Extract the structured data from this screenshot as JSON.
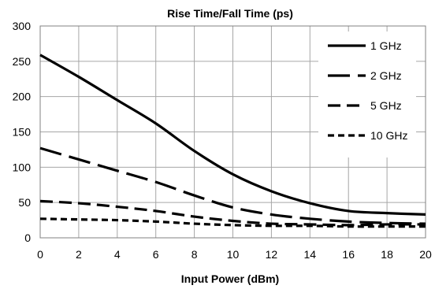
{
  "chart_data": {
    "type": "line",
    "title": "Rise Time/Fall Time (ps)",
    "xlabel": "Input Power (dBm)",
    "ylabel": "",
    "xlim": [
      0,
      20
    ],
    "ylim": [
      0,
      300
    ],
    "xticks": [
      0,
      2,
      4,
      6,
      8,
      10,
      12,
      14,
      16,
      18,
      20
    ],
    "yticks": [
      0,
      50,
      100,
      150,
      200,
      250,
      300
    ],
    "grid": true,
    "legend_position": "top-right",
    "series": [
      {
        "name": "1 GHz",
        "style": "solid",
        "x": [
          0,
          2,
          4,
          6,
          8,
          10,
          12,
          14,
          16,
          18,
          20
        ],
        "y": [
          259,
          228,
          195,
          162,
          123,
          90,
          66,
          49,
          38,
          35,
          33
        ]
      },
      {
        "name": "2 GHz",
        "style": "long-dash",
        "x": [
          0,
          2,
          4,
          6,
          8,
          10,
          12,
          14,
          16,
          18,
          20
        ],
        "y": [
          127,
          111,
          95,
          79,
          60,
          43,
          33,
          27,
          23,
          21,
          20
        ]
      },
      {
        "name": "5 GHz",
        "style": "dash",
        "x": [
          0,
          2,
          4,
          6,
          8,
          10,
          12,
          14,
          16,
          18,
          20
        ],
        "y": [
          52,
          49,
          44,
          38,
          30,
          24,
          20,
          19,
          18,
          19,
          19
        ]
      },
      {
        "name": "10 GHz",
        "style": "short-dash",
        "x": [
          0,
          2,
          4,
          6,
          8,
          10,
          12,
          14,
          16,
          18,
          20
        ],
        "y": [
          27,
          26,
          25,
          23,
          20,
          18,
          17,
          17,
          16,
          16,
          16
        ]
      }
    ],
    "colors": {
      "line": "#000000",
      "grid": "#a6a6a6",
      "axis": "#808080"
    }
  }
}
